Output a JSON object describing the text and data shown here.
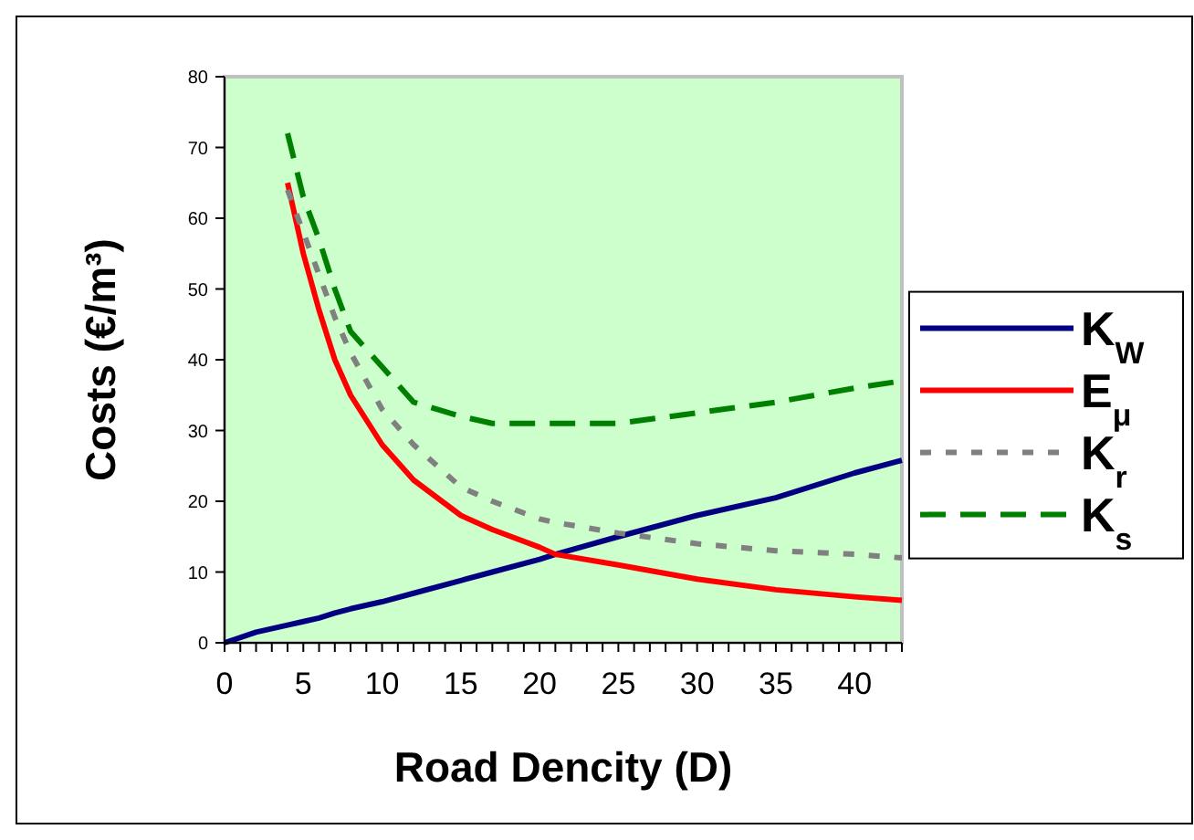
{
  "chart_data": {
    "type": "line",
    "xlabel": "Road Dencity (D)",
    "ylabel": "Costs  (€/m³)",
    "x": [
      0,
      2,
      4,
      5,
      6,
      7,
      8,
      10,
      12,
      15,
      17,
      20,
      21,
      25,
      30,
      35,
      40,
      43
    ],
    "xlim": [
      0,
      43
    ],
    "xticks": [
      0,
      5,
      10,
      15,
      20,
      25,
      30,
      35,
      40
    ],
    "ylim": [
      0,
      80
    ],
    "yticks": [
      0,
      10,
      20,
      30,
      40,
      50,
      60,
      70,
      80
    ],
    "legend": "right",
    "grid": false,
    "series": [
      {
        "name": "K$_{W}$",
        "color": "#000080",
        "line_style": "solid",
        "values": [
          0,
          1.5,
          2.5,
          3,
          3.5,
          4.2,
          4.8,
          5.8,
          7,
          8.8,
          10,
          11.8,
          12.5,
          15,
          18,
          20.5,
          24,
          25.8
        ]
      },
      {
        "name": "E$_{μ}$",
        "color": "#ff0000",
        "line_style": "solid",
        "values": [
          null,
          null,
          65,
          55,
          47,
          40,
          35,
          28,
          23,
          18,
          16,
          13.5,
          12.5,
          11,
          9,
          7.5,
          6.5,
          6
        ]
      },
      {
        "name": "K$_{r}$",
        "color": "#808080",
        "line_style": "dotted",
        "values": [
          null,
          null,
          64,
          58,
          52,
          46,
          41,
          33,
          28,
          22,
          20,
          17.5,
          17,
          15.5,
          14,
          13,
          12.5,
          12
        ]
      },
      {
        "name": "K$_{s}$",
        "color": "#008000",
        "line_style": "dashed",
        "values": [
          null,
          null,
          72,
          63,
          57,
          50,
          44,
          39,
          34,
          32,
          31,
          31,
          31,
          31,
          32.5,
          34,
          36,
          37
        ]
      }
    ]
  }
}
